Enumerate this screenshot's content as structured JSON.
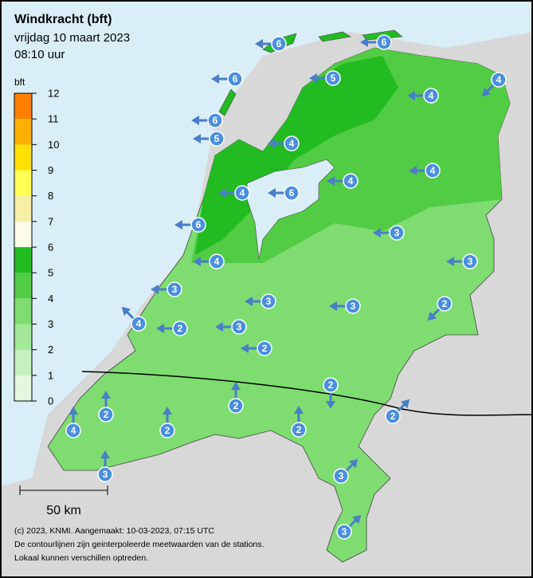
{
  "header": {
    "title": "Windkracht (bft)",
    "date": "vrijdag 10 maart 2023",
    "time": "08:10 uur"
  },
  "legend": {
    "unit": "bft",
    "ticks": [
      0,
      1,
      2,
      3,
      4,
      5,
      6,
      7,
      8,
      9,
      10,
      11,
      12
    ],
    "colors": [
      "#e4f8e0",
      "#c6f0c0",
      "#a2e898",
      "#7edc70",
      "#52cc44",
      "#22bb22",
      "#fbfbe8",
      "#f6efa6",
      "#ffff55",
      "#ffe000",
      "#ffb000",
      "#ff8000"
    ]
  },
  "stations": [
    {
      "value": 6,
      "arrow": 270
    },
    {
      "value": 6,
      "arrow": 270
    },
    {
      "value": 6,
      "arrow": 270
    },
    {
      "value": 5,
      "arrow": 270
    },
    {
      "value": 4,
      "arrow": 225
    },
    {
      "value": 4,
      "arrow": 270
    },
    {
      "value": 6,
      "arrow": 270
    },
    {
      "value": 5,
      "arrow": 270
    },
    {
      "value": 4,
      "arrow": 270
    },
    {
      "value": 4,
      "arrow": 270
    },
    {
      "value": 4,
      "arrow": 270
    },
    {
      "value": 4,
      "arrow": 270
    },
    {
      "value": 6,
      "arrow": 270
    },
    {
      "value": 6,
      "arrow": 270
    },
    {
      "value": 3,
      "arrow": 270
    },
    {
      "value": 4,
      "arrow": 270
    },
    {
      "value": 3,
      "arrow": 270
    },
    {
      "value": 3,
      "arrow": 270
    },
    {
      "value": 3,
      "arrow": 270
    },
    {
      "value": 3,
      "arrow": 270
    },
    {
      "value": 2,
      "arrow": 225
    },
    {
      "value": 4,
      "arrow": 315
    },
    {
      "value": 2,
      "arrow": 270
    },
    {
      "value": 3,
      "arrow": 270
    },
    {
      "value": 2,
      "arrow": 270
    },
    {
      "value": 2,
      "arrow": 180
    },
    {
      "value": 2,
      "arrow": 0
    },
    {
      "value": 2,
      "arrow": 0
    },
    {
      "value": 2,
      "arrow": 45
    },
    {
      "value": 4,
      "arrow": 0
    },
    {
      "value": 2,
      "arrow": 0
    },
    {
      "value": 2,
      "arrow": 0
    },
    {
      "value": 3,
      "arrow": 0
    },
    {
      "value": 3,
      "arrow": 45
    },
    {
      "value": 3,
      "arrow": 45
    }
  ],
  "scale": "50 km",
  "footer": [
    "(c) 2023, KNMI. Aangemaakt: 10-03-2023, 07:15 UTC",
    "De contourlijnen zijn geinterpoleerde meetwaarden van de stations.",
    "Lokaal kunnen verschillen optreden."
  ]
}
